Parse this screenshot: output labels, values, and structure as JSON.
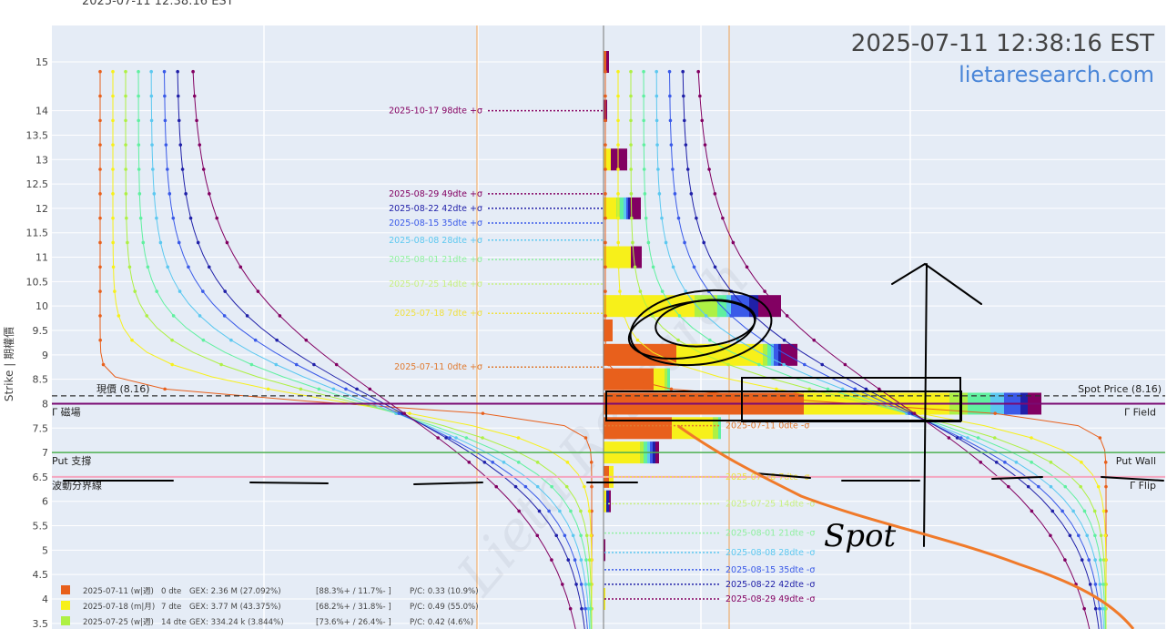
{
  "header_fragment": "2025-07-11 12:38:16 EST",
  "timestamp": "2025-07-11 12:38:16 EST",
  "watermark_site": "lietaresearch.com",
  "ylabel": "Strike | 期權價",
  "colors": {
    "plot_bg": "#e5ecf6",
    "gamma_field": "#7a0a72",
    "put_wall": "#4caf50",
    "flip": "#f4a6c0",
    "spot": "#333333",
    "title": "#444444",
    "site": "#4a86d8",
    "orange_line": "#f07a2a"
  },
  "chart_data": {
    "type": "bar",
    "y_ticks": [
      3.5,
      4,
      4.5,
      5,
      5.5,
      6,
      6.5,
      7,
      7.5,
      8,
      8.5,
      9,
      9.5,
      10,
      10.5,
      11,
      11.5,
      12,
      12.5,
      13,
      13.5,
      14,
      15
    ],
    "ylim": [
      3.3,
      15.9
    ],
    "expiry_colors": [
      "#e8601c",
      "#f7f01a",
      "#aef044",
      "#60f0a0",
      "#5cc8f0",
      "#3a5ae8",
      "#2020a8",
      "#820062"
    ],
    "levels": {
      "spot_price": {
        "label_left": "現價 (8.16)",
        "label_right": "Spot Price (8.16)",
        "value": 8.16
      },
      "gamma_field": {
        "label_left": "Γ 磁場",
        "label_right": "Γ Field",
        "value": 8.0
      },
      "put_wall": {
        "label_left": "Put 支撐",
        "label_right": "Put Wall",
        "value": 7.0
      },
      "gamma_flip": {
        "label_left": "波動分界線",
        "label_right": "Γ Flip",
        "value": 6.5
      }
    },
    "sigma_upper": [
      {
        "label": "2025-10-17 98dte +σ",
        "strike": 14.0,
        "color": "#820062"
      },
      {
        "label": "2025-08-29 49dte +σ",
        "strike": 12.3,
        "color": "#820062"
      },
      {
        "label": "2025-08-22 42dte +σ",
        "strike": 12.0,
        "color": "#2020a8"
      },
      {
        "label": "2025-08-15 35dte +σ",
        "strike": 11.7,
        "color": "#3a5ae8"
      },
      {
        "label": "2025-08-08 28dte +σ",
        "strike": 11.35,
        "color": "#5cc8f0"
      },
      {
        "label": "2025-08-01 21dte +σ",
        "strike": 10.95,
        "color": "#90f0a0"
      },
      {
        "label": "2025-07-25 14dte +σ",
        "strike": 10.45,
        "color": "#c8f080"
      },
      {
        "label": "2025-07-18 7dte +σ",
        "strike": 9.85,
        "color": "#f0e040"
      },
      {
        "label": "2025-07-11 0dte +σ",
        "strike": 8.75,
        "color": "#e07a30"
      }
    ],
    "sigma_lower": [
      {
        "label": "2025-07-11 0dte -σ",
        "strike": 7.55,
        "color": "#e07a30"
      },
      {
        "label": "2025-07-18 7dte -σ",
        "strike": 6.5,
        "color": "#f0e040"
      },
      {
        "label": "2025-07-25 14dte -σ",
        "strike": 5.95,
        "color": "#c8f080"
      },
      {
        "label": "2025-08-01 21dte -σ",
        "strike": 5.35,
        "color": "#90f0a0"
      },
      {
        "label": "2025-08-08 28dte -σ",
        "strike": 4.95,
        "color": "#5cc8f0"
      },
      {
        "label": "2025-08-15 35dte -σ",
        "strike": 4.6,
        "color": "#3a5ae8"
      },
      {
        "label": "2025-08-22 42dte -σ",
        "strike": 4.3,
        "color": "#2020a8"
      },
      {
        "label": "2025-08-29 49dte -σ",
        "strike": 4.0,
        "color": "#820062"
      }
    ],
    "gex_bars": [
      {
        "strike": 15,
        "segments": [
          3,
          0,
          0,
          0,
          0,
          0,
          0,
          3
        ]
      },
      {
        "strike": 14,
        "segments": [
          0,
          0,
          0,
          0,
          0,
          0,
          0,
          4
        ]
      },
      {
        "strike": 13,
        "segments": [
          0,
          8,
          0,
          0,
          0,
          0,
          0,
          18
        ]
      },
      {
        "strike": 12,
        "segments": [
          0,
          14,
          4,
          4,
          3,
          2,
          2,
          12
        ]
      },
      {
        "strike": 11,
        "segments": [
          0,
          30,
          0,
          0,
          0,
          0,
          0,
          12
        ]
      },
      {
        "strike": 10,
        "segments": [
          0,
          100,
          25,
          10,
          5,
          20,
          10,
          25
        ]
      },
      {
        "strike": 9.5,
        "segments": [
          10,
          0,
          0,
          0,
          0,
          0,
          0,
          0
        ]
      },
      {
        "strike": 9,
        "segments": [
          80,
          95,
          5,
          4,
          3,
          5,
          3,
          18
        ]
      },
      {
        "strike": 8.5,
        "segments": [
          55,
          12,
          3,
          3,
          0,
          0,
          0,
          0
        ]
      },
      {
        "strike": 8,
        "segments": [
          220,
          160,
          20,
          25,
          15,
          18,
          8,
          15
        ]
      },
      {
        "strike": 7.5,
        "segments": [
          75,
          45,
          6,
          3,
          0,
          0,
          0,
          0
        ]
      },
      {
        "strike": 7,
        "segments": [
          0,
          40,
          4,
          4,
          3,
          3,
          3,
          4
        ]
      },
      {
        "strike": 6.5,
        "segments": [
          6,
          5,
          0,
          0,
          0,
          0,
          0,
          0
        ]
      },
      {
        "strike": 6,
        "segments": [
          0,
          3,
          0,
          0,
          0,
          0,
          3,
          2
        ]
      },
      {
        "strike": 5,
        "segments": [
          0,
          0,
          0,
          0,
          0,
          0,
          0,
          2
        ]
      },
      {
        "strike": 4,
        "segments": [
          0,
          2,
          0,
          0,
          0,
          0,
          0,
          0
        ]
      }
    ],
    "legend": [
      {
        "date": "2025-07-11 (w|週)",
        "dte": "0 dte",
        "gex": "GEX: 2.36 M (27.092%)",
        "range": "[88.3%+ / 11.7%- ]",
        "pc": "P/C: 0.33  (10.9%)",
        "color": "#e8601c"
      },
      {
        "date": "2025-07-18 (m|月)",
        "dte": "7 dte",
        "gex": "GEX: 3.77 M (43.375%)",
        "range": "[68.2%+ / 31.8%- ]",
        "pc": "P/C: 0.49  (55.0%)",
        "color": "#f7f01a"
      },
      {
        "date": "2025-07-25 (w|週)",
        "dte": "14 dte",
        "gex": "GEX: 334.24 k (3.844%)",
        "range": "[73.6%+ / 26.4%- ]",
        "pc": "P/C: 0.42  (4.6%)",
        "color": "#aef044"
      }
    ],
    "handwriting": "Spot"
  }
}
